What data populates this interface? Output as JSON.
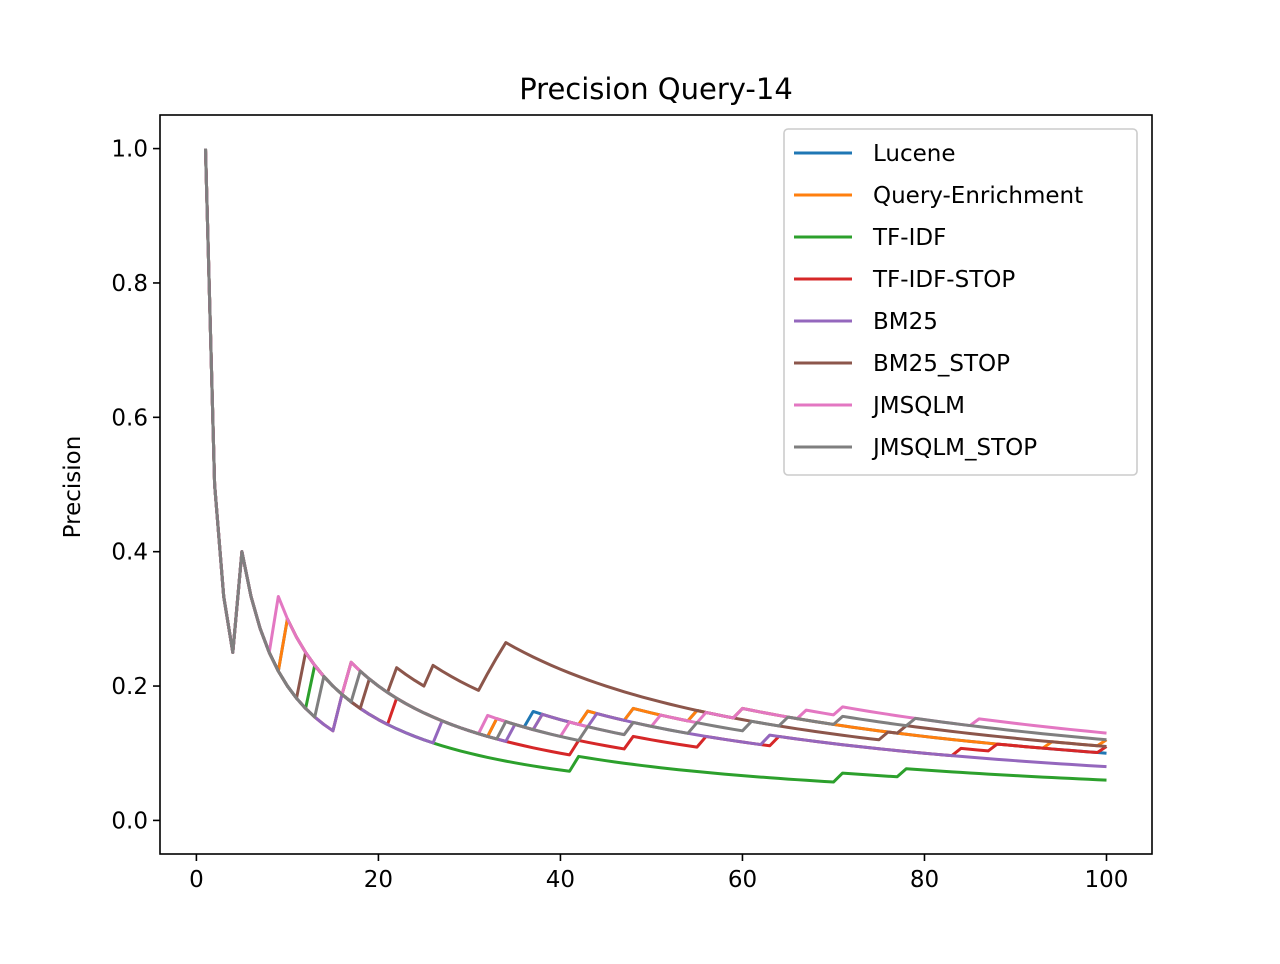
{
  "chart_data": {
    "type": "line",
    "title": "Precision Query-14",
    "xlabel": "",
    "ylabel": "Precision",
    "xlim": [
      -4,
      105
    ],
    "ylim": [
      -0.05,
      1.05
    ],
    "x_ticks": [
      0,
      20,
      40,
      60,
      80,
      100
    ],
    "x_tick_labels": [
      "0",
      "20",
      "40",
      "60",
      "80",
      "100"
    ],
    "y_ticks": [
      0.0,
      0.2,
      0.4,
      0.6,
      0.8,
      1.0
    ],
    "y_tick_labels": [
      "0.0",
      "0.2",
      "0.4",
      "0.6",
      "0.8",
      "1.0"
    ],
    "grid": false,
    "legend_position": "top-right",
    "x_range": [
      1,
      100
    ],
    "series": [
      {
        "name": "Lucene",
        "color": "#1f77b4",
        "relevant_ranks": [
          1,
          5,
          10,
          17,
          33,
          37,
          43,
          48,
          55,
          60
        ]
      },
      {
        "name": "Query-Enrichment",
        "color": "#ff7f0e",
        "relevant_ranks": [
          1,
          5,
          10,
          17,
          33,
          38,
          43,
          48,
          55,
          60,
          94,
          100
        ]
      },
      {
        "name": "TF-IDF",
        "color": "#2ca02c",
        "relevant_ranks": [
          1,
          5,
          13,
          42,
          71,
          78
        ]
      },
      {
        "name": "TF-IDF-STOP",
        "color": "#d62728",
        "relevant_ranks": [
          1,
          5,
          16,
          22,
          42,
          48,
          56,
          64,
          84,
          88,
          100
        ]
      },
      {
        "name": "BM25",
        "color": "#9467bd",
        "relevant_ranks": [
          1,
          5,
          16,
          27,
          35,
          38,
          44,
          63
        ]
      },
      {
        "name": "BM25_STOP",
        "color": "#8c564b",
        "relevant_ranks": [
          1,
          5,
          12,
          19,
          22,
          26,
          32,
          33,
          34,
          76,
          78
        ]
      },
      {
        "name": "JMSQLM",
        "color": "#e377c2",
        "relevant_ranks": [
          1,
          5,
          9,
          17,
          32,
          41,
          48,
          51,
          56,
          60,
          67,
          71,
          86
        ]
      },
      {
        "name": "JMSQLM_STOP",
        "color": "#7f7f7f",
        "relevant_ranks": [
          1,
          5,
          14,
          18,
          34,
          43,
          48,
          55,
          61,
          65,
          71,
          79
        ]
      }
    ]
  }
}
